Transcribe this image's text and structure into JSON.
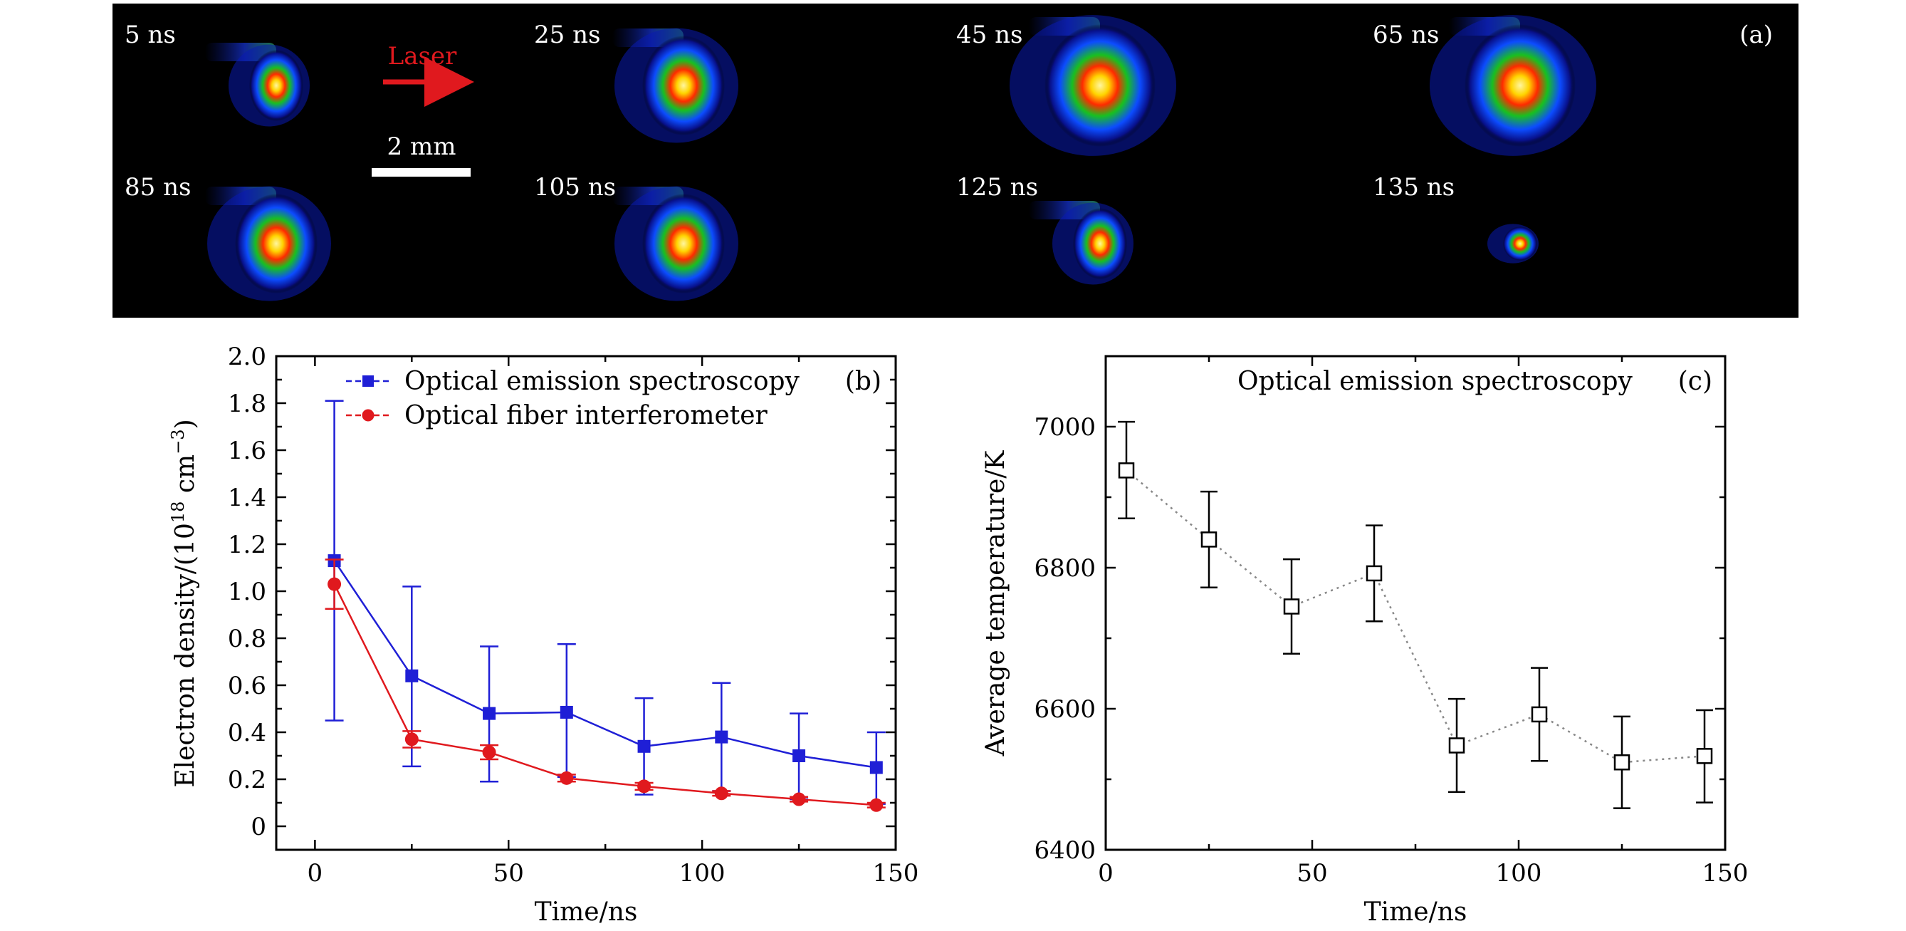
{
  "panel_a": {
    "label": "(a)",
    "laser_label": "Laser",
    "scale_bar_label": "2 mm",
    "frames": [
      {
        "time": "5 ns",
        "glow": "small"
      },
      {
        "time": "25 ns",
        "glow": "medium"
      },
      {
        "time": "45 ns",
        "glow": "large"
      },
      {
        "time": "65 ns",
        "glow": "large"
      },
      {
        "time": "85 ns",
        "glow": "medium"
      },
      {
        "time": "105 ns",
        "glow": "medium"
      },
      {
        "time": "125 ns",
        "glow": "small"
      },
      {
        "time": "135 ns",
        "glow": "tiny"
      }
    ]
  },
  "chart_data": [
    {
      "id": "b",
      "type": "line",
      "panel_label": "(b)",
      "xlabel": "Time/ns",
      "ylabel": "Electron density/(10",
      "ylabel_sup": "18",
      "ylabel_mid": " cm",
      "ylabel_sup2": "−3",
      "ylabel_end": ")",
      "xlim": [
        -10,
        150
      ],
      "ylim": [
        -0.1,
        2.0
      ],
      "xticks": [
        0,
        50,
        100,
        150
      ],
      "yticks": [
        0,
        0.2,
        0.4,
        0.6,
        0.8,
        1.0,
        1.2,
        1.4,
        1.6,
        1.8,
        2.0
      ],
      "ytick_labels": [
        "0",
        "0.2",
        "0.4",
        "0.6",
        "0.8",
        "1.0",
        "1.2",
        "1.4",
        "1.6",
        "1.8",
        "2.0"
      ],
      "legend_position": "top-left",
      "series": [
        {
          "name": "Optical emission spectroscopy",
          "color": "#1f1fd6",
          "marker": "square",
          "x": [
            5,
            25,
            45,
            65,
            85,
            105,
            125,
            145
          ],
          "y": [
            1.13,
            0.64,
            0.48,
            0.485,
            0.34,
            0.38,
            0.3,
            0.25
          ],
          "err_low": [
            0.45,
            0.255,
            0.19,
            0.21,
            0.135,
            0.15,
            0.115,
            0.095
          ],
          "err_high": [
            1.81,
            1.02,
            0.765,
            0.775,
            0.545,
            0.61,
            0.48,
            0.4
          ]
        },
        {
          "name": "Optical fiber interferometer",
          "color": "#e0191e",
          "marker": "circle",
          "x": [
            5,
            25,
            45,
            65,
            85,
            105,
            125,
            145
          ],
          "y": [
            1.03,
            0.37,
            0.315,
            0.205,
            0.17,
            0.14,
            0.115,
            0.09
          ],
          "err_low": [
            0.925,
            0.335,
            0.285,
            0.19,
            0.155,
            0.13,
            0.105,
            0.08
          ],
          "err_high": [
            1.135,
            0.405,
            0.345,
            0.22,
            0.185,
            0.15,
            0.125,
            0.1
          ]
        }
      ]
    },
    {
      "id": "c",
      "type": "line",
      "panel_label": "(c)",
      "title": "Optical emission spectroscopy",
      "xlabel": "Time/ns",
      "ylabel": "Average temperature/K",
      "xlim": [
        0,
        150
      ],
      "ylim": [
        6400,
        7100
      ],
      "xticks": [
        0,
        50,
        100,
        150
      ],
      "yticks": [
        6400,
        6600,
        6800,
        7000
      ],
      "ytick_labels": [
        "6400",
        "6600",
        "6800",
        "7000"
      ],
      "series": [
        {
          "name": "Average temperature",
          "color": "#000000",
          "marker": "open-square",
          "x": [
            5,
            25,
            45,
            65,
            85,
            105,
            125,
            145
          ],
          "y": [
            6938,
            6840,
            6745,
            6792,
            6548,
            6592,
            6524,
            6533
          ],
          "err_low": [
            6870,
            6772,
            6678,
            6724,
            6482,
            6526,
            6459,
            6467
          ],
          "err_high": [
            7007,
            6908,
            6812,
            6860,
            6614,
            6658,
            6589,
            6598
          ]
        }
      ]
    }
  ]
}
